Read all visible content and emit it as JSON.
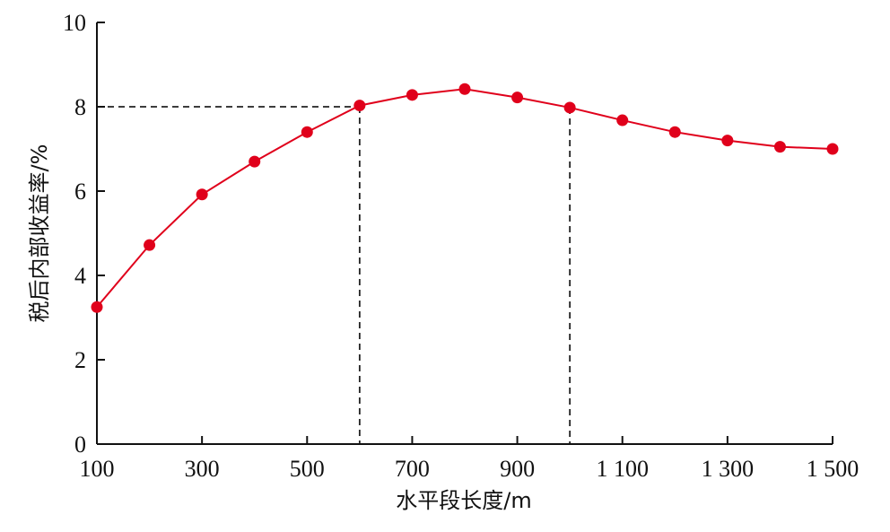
{
  "chart_data": {
    "type": "line",
    "xlabel": "水平段长度/m",
    "ylabel": "税后内部收益率/%",
    "xlim": [
      100,
      1500
    ],
    "ylim": [
      0,
      10
    ],
    "x_ticks": [
      100,
      300,
      500,
      700,
      900,
      1100,
      1300,
      1500
    ],
    "x_tick_labels": [
      "100",
      "300",
      "500",
      "700",
      "900",
      "1 100",
      "1 300",
      "1 500"
    ],
    "y_ticks": [
      0,
      2,
      4,
      6,
      8,
      10
    ],
    "y_tick_labels": [
      "0",
      "2",
      "4",
      "6",
      "8",
      "10"
    ],
    "grid": false,
    "series": [
      {
        "color": "#e0001b",
        "marker": "circle",
        "x": [
          100,
          200,
          300,
          400,
          500,
          600,
          700,
          800,
          900,
          1000,
          1100,
          1200,
          1300,
          1400,
          1500
        ],
        "y": [
          3.25,
          4.72,
          5.92,
          6.7,
          7.4,
          8.03,
          8.28,
          8.42,
          8.22,
          7.98,
          7.68,
          7.4,
          7.2,
          7.05,
          7.0
        ]
      }
    ],
    "reference_lines": [
      {
        "x": 600,
        "y": 8.0,
        "style": "dashed"
      },
      {
        "x": 1000,
        "y": 7.98,
        "style": "dashed"
      }
    ]
  }
}
